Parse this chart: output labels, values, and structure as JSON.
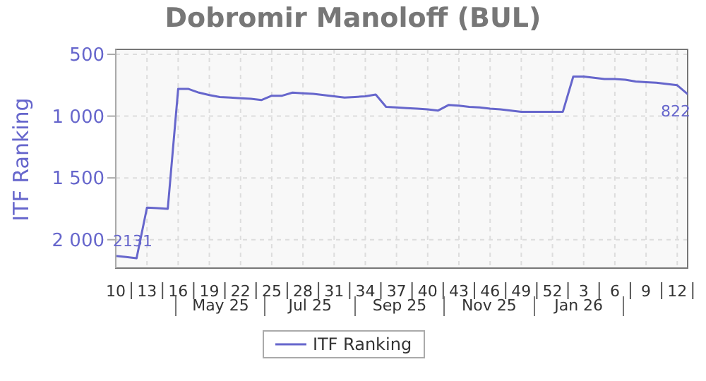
{
  "chart_data": {
    "type": "line",
    "title": "Dobromir Manoloff (BUL)",
    "ylabel": "ITF Ranking",
    "categories": [
      "10",
      null,
      null,
      "13",
      null,
      null,
      "16",
      null,
      null,
      "19",
      null,
      null,
      "22",
      null,
      null,
      "25",
      null,
      null,
      "28",
      null,
      null,
      "31",
      null,
      null,
      "34",
      null,
      null,
      "37",
      null,
      null,
      "40",
      null,
      null,
      "43",
      null,
      null,
      "46",
      null,
      null,
      "49",
      null,
      null,
      "52",
      null,
      null,
      "3",
      null,
      null,
      "6",
      null,
      null,
      "9",
      null,
      null,
      "12",
      null
    ],
    "series": [
      {
        "name": "ITF Ranking",
        "color": "#6666cc",
        "values": [
          2131,
          2140,
          2150,
          1740,
          1745,
          1750,
          780,
          780,
          810,
          830,
          845,
          850,
          855,
          860,
          870,
          835,
          835,
          810,
          815,
          820,
          830,
          840,
          850,
          845,
          840,
          825,
          925,
          930,
          935,
          940,
          945,
          955,
          910,
          915,
          925,
          930,
          940,
          945,
          955,
          965,
          965,
          965,
          965,
          965,
          680,
          680,
          690,
          700,
          700,
          705,
          720,
          725,
          730,
          740,
          750,
          822
        ],
        "value_labels": [
          "2131",
          null,
          null,
          null,
          null,
          null,
          null,
          null,
          null,
          null,
          null,
          null,
          null,
          null,
          null,
          null,
          null,
          null,
          null,
          null,
          null,
          null,
          null,
          null,
          null,
          null,
          null,
          null,
          null,
          null,
          null,
          null,
          null,
          null,
          null,
          null,
          null,
          null,
          null,
          null,
          null,
          null,
          null,
          null,
          null,
          null,
          null,
          null,
          null,
          null,
          null,
          null,
          null,
          null,
          null,
          "822"
        ]
      }
    ],
    "ylim": [
      2230,
      460
    ],
    "yticks": [
      500,
      {
        "value": 1000,
        "label": "1 000"
      },
      {
        "value": 1500,
        "label": "1 500"
      },
      {
        "value": 2000,
        "label": "2 000"
      }
    ],
    "annotations": [
      "May 25",
      "Jul 25",
      "Sep 25",
      "Nov 25",
      "Jan 26"
    ],
    "grid": true,
    "legend": "bottom",
    "marker": "none",
    "line_style": "solid"
  }
}
